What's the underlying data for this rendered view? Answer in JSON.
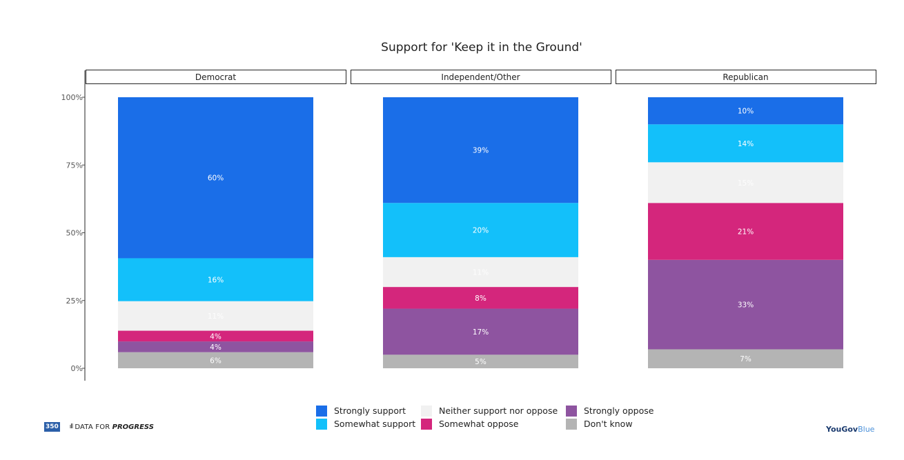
{
  "chart_data": {
    "type": "bar",
    "subtype": "stacked-100-percent-faceted",
    "title": "Support for 'Keep it in the Ground'",
    "facets": [
      "Democrat",
      "Independent/Other",
      "Republican"
    ],
    "y_ticks": [
      "0%",
      "25%",
      "50%",
      "75%",
      "100%"
    ],
    "y_range": [
      0,
      100
    ],
    "stack_order_bottom_to_top": [
      "Don't know",
      "Strongly oppose",
      "Somewhat oppose",
      "Neither support nor oppose",
      "Somewhat support",
      "Strongly support"
    ],
    "series": [
      {
        "name": "Strongly support",
        "color": "#1a6ee8",
        "values": [
          60,
          39,
          10
        ],
        "labels": [
          "60%",
          "39%",
          "10%"
        ]
      },
      {
        "name": "Somewhat support",
        "color": "#13c0fa",
        "values": [
          16,
          20,
          14
        ],
        "labels": [
          "16%",
          "20%",
          "14%"
        ]
      },
      {
        "name": "Neither support nor oppose",
        "color": "#f1f1f1",
        "values": [
          11,
          11,
          15
        ],
        "labels": [
          "11%",
          "11%",
          "15%"
        ]
      },
      {
        "name": "Somewhat oppose",
        "color": "#d4267c",
        "values": [
          4,
          8,
          21
        ],
        "labels": [
          "4%",
          "8%",
          "21%"
        ]
      },
      {
        "name": "Strongly oppose",
        "color": "#8e54a0",
        "values": [
          4,
          17,
          33
        ],
        "labels": [
          "4%",
          "17%",
          "33%"
        ]
      },
      {
        "name": "Don't know",
        "color": "#b4b4b4",
        "values": [
          6,
          5,
          7
        ],
        "labels": [
          "6%",
          "5%",
          "7%"
        ]
      }
    ]
  },
  "legend": {
    "items": [
      {
        "label": "Strongly support",
        "color": "#1a6ee8"
      },
      {
        "label": "Neither support nor oppose",
        "color": "#f1f1f1"
      },
      {
        "label": "Strongly oppose",
        "color": "#8e54a0"
      },
      {
        "label": "Somewhat support",
        "color": "#13c0fa"
      },
      {
        "label": "Somewhat oppose",
        "color": "#d4267c"
      },
      {
        "label": "Don't know",
        "color": "#b4b4b4"
      }
    ]
  },
  "footer": {
    "logo_350": "350",
    "dfp_bars": "ıll",
    "dfp_text": "DATA FOR",
    "dfp_strong": "PROGRESS",
    "yougov_part1": "YouGov",
    "yougov_part2": "Blue"
  }
}
